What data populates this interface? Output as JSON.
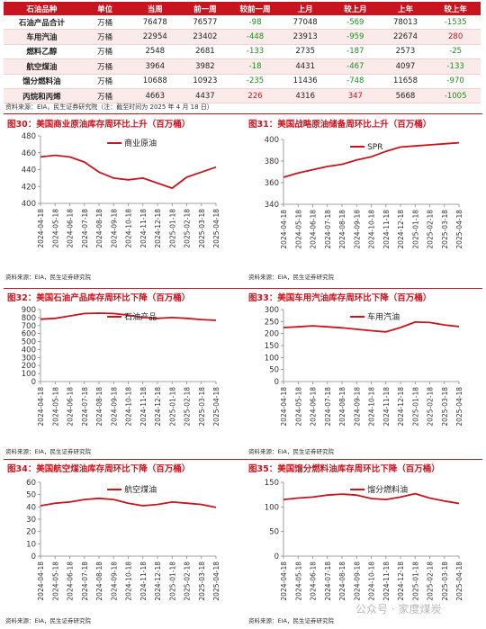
{
  "table": {
    "headers": [
      "石油品种",
      "单位",
      "当周",
      "前一周",
      "较前一周",
      "上月",
      "较上月",
      "上年",
      "较上年"
    ],
    "rows": [
      [
        "石油产品合计",
        "万桶",
        "76478",
        "76577",
        "-98",
        "77048",
        "-569",
        "78013",
        "-1535"
      ],
      [
        "车用汽油",
        "万桶",
        "22954",
        "23402",
        "-448",
        "23913",
        "-959",
        "22674",
        "280"
      ],
      [
        "燃料乙醇",
        "万桶",
        "2548",
        "2681",
        "-133",
        "2735",
        "-187",
        "2573",
        "-25"
      ],
      [
        "航空煤油",
        "万桶",
        "3964",
        "3982",
        "-18",
        "4431",
        "-467",
        "4097",
        "-133"
      ],
      [
        "馏分燃料油",
        "万桶",
        "10688",
        "10923",
        "-235",
        "11436",
        "-748",
        "11658",
        "-970"
      ],
      [
        "丙烷和丙烯",
        "万桶",
        "4663",
        "4437",
        "226",
        "4316",
        "347",
        "5668",
        "-1005"
      ]
    ],
    "note": "资料来源：EIA，民生证券研究院（注：截至时间为 2025 年 4 月 18 日）"
  },
  "colors": {
    "accent": "#c8141e",
    "negative": "#1b8f1b",
    "row_alt": "#fbeaea"
  },
  "source": "资料来源：EIA，民生证券研究院",
  "watermark": "公众号 · 家度煤炭",
  "chart_data": [
    {
      "type": "line",
      "title": "图30：美国商业原油库存周环比上升（百万桶）",
      "series": [
        {
          "name": "商业原油"
        }
      ],
      "yticks": [
        400,
        420,
        440,
        460,
        480
      ],
      "ylim": [
        400,
        480
      ],
      "xticks": [
        "2024-04-18",
        "2024-05-18",
        "2024-06-18",
        "2024-07-18",
        "2024-08-18",
        "2024-09-18",
        "2024-10-18",
        "2024-11-18",
        "2024-12-18",
        "2025-01-18",
        "2025-02-18",
        "2025-03-18",
        "2025-04-18"
      ],
      "x": [
        0,
        1,
        2,
        3,
        4,
        5,
        6,
        7,
        8,
        9,
        10,
        11,
        12
      ],
      "y": [
        455,
        457,
        455,
        449,
        437,
        430,
        428,
        430,
        424,
        418,
        431,
        437,
        443
      ]
    },
    {
      "type": "line",
      "title": "图31：美国战略原油储备周环比上升（百万桶）",
      "series": [
        {
          "name": "SPR"
        }
      ],
      "yticks": [
        340,
        360,
        380,
        400
      ],
      "ylim": [
        340,
        400
      ],
      "xticks": [
        "2024-04-18",
        "2024-05-18",
        "2024-06-18",
        "2024-07-18",
        "2024-08-18",
        "2024-09-18",
        "2024-10-18",
        "2024-11-18",
        "2024-12-18",
        "2025-01-18",
        "2025-02-18",
        "2025-03-18",
        "2025-04-18"
      ],
      "x": [
        0,
        1,
        2,
        3,
        4,
        5,
        6,
        7,
        8,
        9,
        10,
        11,
        12
      ],
      "y": [
        365,
        369,
        372,
        375,
        377,
        381,
        384,
        389,
        393,
        394,
        395,
        396,
        397
      ]
    },
    {
      "type": "line",
      "title": "图32：美国石油产品库存周环比下降（百万桶）",
      "series": [
        {
          "name": "石油产品"
        }
      ],
      "yticks": [
        0,
        100,
        200,
        300,
        400,
        500,
        600,
        700,
        800,
        900
      ],
      "ylim": [
        0,
        900
      ],
      "xticks": [
        "2024-04-18",
        "2024-05-18",
        "2024-06-18",
        "2024-07-18",
        "2024-08-18",
        "2024-09-18",
        "2024-10-18",
        "2024-11-18",
        "2024-12-18",
        "2025-01-18",
        "2025-02-18",
        "2025-03-18",
        "2025-04-18"
      ],
      "x": [
        0,
        1,
        2,
        3,
        4,
        5,
        6,
        7,
        8,
        9,
        10,
        11,
        12
      ],
      "y": [
        780,
        790,
        820,
        850,
        855,
        850,
        830,
        800,
        790,
        800,
        790,
        775,
        765
      ]
    },
    {
      "type": "line",
      "title": "图33：美国车用汽油库存周环比下降（百万桶）",
      "series": [
        {
          "name": "车用汽油"
        }
      ],
      "yticks": [
        0,
        50,
        100,
        150,
        200,
        250,
        300
      ],
      "ylim": [
        0,
        300
      ],
      "xticks": [
        "2024-04-18",
        "2024-05-18",
        "2024-06-18",
        "2024-07-18",
        "2024-08-18",
        "2024-09-18",
        "2024-10-18",
        "2024-11-18",
        "2024-12-18",
        "2025-01-18",
        "2025-02-18",
        "2025-03-18",
        "2025-04-18"
      ],
      "x": [
        0,
        1,
        2,
        3,
        4,
        5,
        6,
        7,
        8,
        9,
        10,
        11,
        12
      ],
      "y": [
        225,
        228,
        232,
        228,
        224,
        218,
        212,
        207,
        225,
        248,
        246,
        236,
        229
      ]
    },
    {
      "type": "line",
      "title": "图34：美国航空煤油库存周环比下降（百万桶）",
      "series": [
        {
          "name": "航空煤油"
        }
      ],
      "yticks": [
        0,
        10,
        20,
        30,
        40,
        50,
        60
      ],
      "ylim": [
        0,
        60
      ],
      "xticks": [
        "2024-04-18",
        "2024-05-18",
        "2024-06-18",
        "2024-07-18",
        "2024-08-18",
        "2024-09-18",
        "2024-10-18",
        "2024-11-18",
        "2024-12-18",
        "2025-01-18",
        "2025-02-18",
        "2025-03-18",
        "2025-04-18"
      ],
      "x": [
        0,
        1,
        2,
        3,
        4,
        5,
        6,
        7,
        8,
        9,
        10,
        11,
        12
      ],
      "y": [
        41,
        43,
        44,
        46,
        47,
        46,
        43,
        41,
        42,
        44,
        43,
        42,
        39.6
      ]
    },
    {
      "type": "line",
      "title": "图35：美国馏分燃料油库存周环比下降（百万桶）",
      "series": [
        {
          "name": "馏分燃料油"
        }
      ],
      "yticks": [
        0,
        50,
        100,
        150
      ],
      "ylim": [
        0,
        150
      ],
      "xticks": [
        "2024-04-18",
        "2024-05-18",
        "2024-06-18",
        "2024-07-18",
        "2024-08-18",
        "2024-09-18",
        "2024-10-18",
        "2024-11-18",
        "2024-12-18",
        "2025-01-18",
        "2025-02-18",
        "2025-03-18",
        "2025-04-18"
      ],
      "x": [
        0,
        1,
        2,
        3,
        4,
        5,
        6,
        7,
        8,
        9,
        10,
        11,
        12
      ],
      "y": [
        115,
        118,
        120,
        124,
        126,
        124,
        117,
        115,
        120,
        127,
        118,
        112,
        107
      ]
    }
  ]
}
